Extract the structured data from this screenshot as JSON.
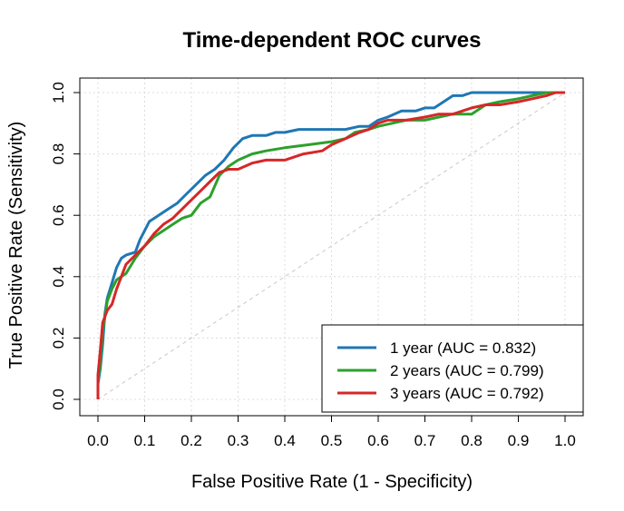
{
  "chart_data": {
    "type": "line",
    "title": "Time-dependent ROC curves",
    "xlabel": "False Positive Rate (1 - Specificity)",
    "ylabel": "True Positive Rate (Sensitivity)",
    "xlim": [
      0,
      1
    ],
    "ylim": [
      0,
      1
    ],
    "x_ticks": [
      "0.0",
      "0.1",
      "0.2",
      "0.3",
      "0.4",
      "0.5",
      "0.6",
      "0.7",
      "0.8",
      "0.9",
      "1.0"
    ],
    "y_ticks": [
      "0.0",
      "0.2",
      "0.4",
      "0.6",
      "0.8",
      "1.0"
    ],
    "grid": true,
    "reference_line": true,
    "legend_position": "bottom-right",
    "series": [
      {
        "name": "1 year (AUC = 0.832)",
        "color": "#1f77b4",
        "points": [
          [
            0,
            0
          ],
          [
            0,
            0.05
          ],
          [
            0.005,
            0.1
          ],
          [
            0.01,
            0.18
          ],
          [
            0.015,
            0.28
          ],
          [
            0.02,
            0.33
          ],
          [
            0.03,
            0.38
          ],
          [
            0.04,
            0.43
          ],
          [
            0.05,
            0.46
          ],
          [
            0.06,
            0.47
          ],
          [
            0.08,
            0.48
          ],
          [
            0.09,
            0.52
          ],
          [
            0.1,
            0.55
          ],
          [
            0.11,
            0.58
          ],
          [
            0.13,
            0.6
          ],
          [
            0.15,
            0.62
          ],
          [
            0.17,
            0.64
          ],
          [
            0.19,
            0.67
          ],
          [
            0.21,
            0.7
          ],
          [
            0.23,
            0.73
          ],
          [
            0.25,
            0.75
          ],
          [
            0.27,
            0.78
          ],
          [
            0.29,
            0.82
          ],
          [
            0.31,
            0.85
          ],
          [
            0.33,
            0.86
          ],
          [
            0.36,
            0.86
          ],
          [
            0.38,
            0.87
          ],
          [
            0.4,
            0.87
          ],
          [
            0.43,
            0.88
          ],
          [
            0.46,
            0.88
          ],
          [
            0.5,
            0.88
          ],
          [
            0.53,
            0.88
          ],
          [
            0.56,
            0.89
          ],
          [
            0.58,
            0.89
          ],
          [
            0.6,
            0.91
          ],
          [
            0.62,
            0.92
          ],
          [
            0.65,
            0.94
          ],
          [
            0.68,
            0.94
          ],
          [
            0.7,
            0.95
          ],
          [
            0.72,
            0.95
          ],
          [
            0.74,
            0.97
          ],
          [
            0.76,
            0.99
          ],
          [
            0.78,
            0.99
          ],
          [
            0.8,
            1.0
          ],
          [
            0.9,
            1.0
          ],
          [
            1,
            1
          ]
        ]
      },
      {
        "name": "2 years (AUC = 0.799)",
        "color": "#2ca02c",
        "points": [
          [
            0,
            0
          ],
          [
            0,
            0.06
          ],
          [
            0.005,
            0.12
          ],
          [
            0.01,
            0.22
          ],
          [
            0.02,
            0.32
          ],
          [
            0.03,
            0.36
          ],
          [
            0.04,
            0.39
          ],
          [
            0.06,
            0.41
          ],
          [
            0.08,
            0.46
          ],
          [
            0.1,
            0.5
          ],
          [
            0.12,
            0.53
          ],
          [
            0.14,
            0.55
          ],
          [
            0.16,
            0.57
          ],
          [
            0.18,
            0.59
          ],
          [
            0.2,
            0.6
          ],
          [
            0.22,
            0.64
          ],
          [
            0.24,
            0.66
          ],
          [
            0.26,
            0.73
          ],
          [
            0.28,
            0.76
          ],
          [
            0.3,
            0.78
          ],
          [
            0.33,
            0.8
          ],
          [
            0.36,
            0.81
          ],
          [
            0.4,
            0.82
          ],
          [
            0.45,
            0.83
          ],
          [
            0.5,
            0.84
          ],
          [
            0.53,
            0.85
          ],
          [
            0.55,
            0.87
          ],
          [
            0.58,
            0.88
          ],
          [
            0.6,
            0.89
          ],
          [
            0.63,
            0.9
          ],
          [
            0.66,
            0.91
          ],
          [
            0.7,
            0.91
          ],
          [
            0.73,
            0.92
          ],
          [
            0.76,
            0.93
          ],
          [
            0.8,
            0.93
          ],
          [
            0.83,
            0.96
          ],
          [
            0.86,
            0.97
          ],
          [
            0.9,
            0.98
          ],
          [
            0.93,
            0.99
          ],
          [
            0.96,
            1.0
          ],
          [
            1,
            1
          ]
        ]
      },
      {
        "name": "3 years (AUC = 0.792)",
        "color": "#d62728",
        "points": [
          [
            0,
            0
          ],
          [
            0,
            0.08
          ],
          [
            0.005,
            0.16
          ],
          [
            0.01,
            0.25
          ],
          [
            0.02,
            0.29
          ],
          [
            0.03,
            0.31
          ],
          [
            0.04,
            0.36
          ],
          [
            0.05,
            0.4
          ],
          [
            0.06,
            0.44
          ],
          [
            0.08,
            0.47
          ],
          [
            0.1,
            0.5
          ],
          [
            0.12,
            0.54
          ],
          [
            0.14,
            0.57
          ],
          [
            0.16,
            0.59
          ],
          [
            0.18,
            0.62
          ],
          [
            0.2,
            0.65
          ],
          [
            0.22,
            0.68
          ],
          [
            0.24,
            0.71
          ],
          [
            0.26,
            0.74
          ],
          [
            0.28,
            0.75
          ],
          [
            0.3,
            0.75
          ],
          [
            0.33,
            0.77
          ],
          [
            0.36,
            0.78
          ],
          [
            0.4,
            0.78
          ],
          [
            0.44,
            0.8
          ],
          [
            0.48,
            0.81
          ],
          [
            0.5,
            0.83
          ],
          [
            0.53,
            0.85
          ],
          [
            0.56,
            0.87
          ],
          [
            0.58,
            0.88
          ],
          [
            0.6,
            0.9
          ],
          [
            0.62,
            0.91
          ],
          [
            0.66,
            0.91
          ],
          [
            0.7,
            0.92
          ],
          [
            0.73,
            0.93
          ],
          [
            0.76,
            0.93
          ],
          [
            0.8,
            0.95
          ],
          [
            0.83,
            0.96
          ],
          [
            0.86,
            0.96
          ],
          [
            0.9,
            0.97
          ],
          [
            0.93,
            0.98
          ],
          [
            0.96,
            0.99
          ],
          [
            0.98,
            1.0
          ],
          [
            1,
            1
          ]
        ]
      }
    ]
  }
}
